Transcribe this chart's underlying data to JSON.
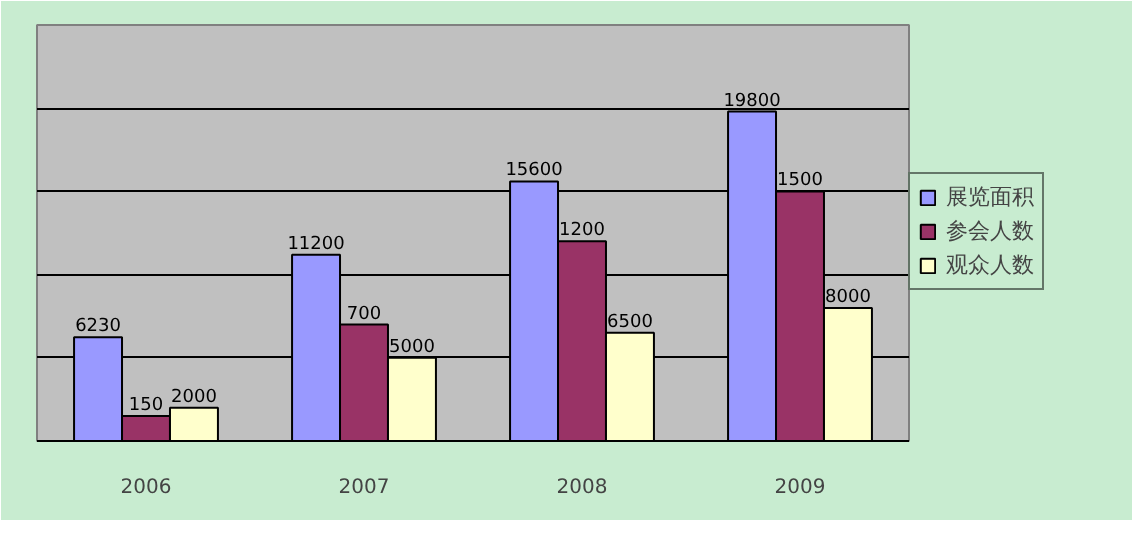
{
  "chart_data": {
    "type": "bar",
    "categories": [
      "2006",
      "2007",
      "2008",
      "2009"
    ],
    "series": [
      {
        "name": "展览面积",
        "color": "#9999ff",
        "values": [
          6230,
          11200,
          15600,
          19800
        ]
      },
      {
        "name": "参会人数",
        "color": "#993366",
        "values": [
          150,
          700,
          1200,
          1500
        ],
        "axis": "y2"
      },
      {
        "name": "观众人数",
        "color": "#ffffcc",
        "values": [
          2000,
          5000,
          6500,
          8000
        ]
      }
    ],
    "ylim": [
      0,
      25000
    ],
    "yticks": [
      {
        "value": 0,
        "label": null
      },
      {
        "value": 5000,
        "label": null
      },
      {
        "value": 10000,
        "label": null
      },
      {
        "value": 15000,
        "label": null
      },
      {
        "value": 20000,
        "label": null
      },
      {
        "value": 25000,
        "label": null
      }
    ],
    "y2lim": [
      0,
      2500
    ],
    "tick_labels": "x",
    "grid": "y",
    "legend": "right",
    "data_labels": true
  }
}
